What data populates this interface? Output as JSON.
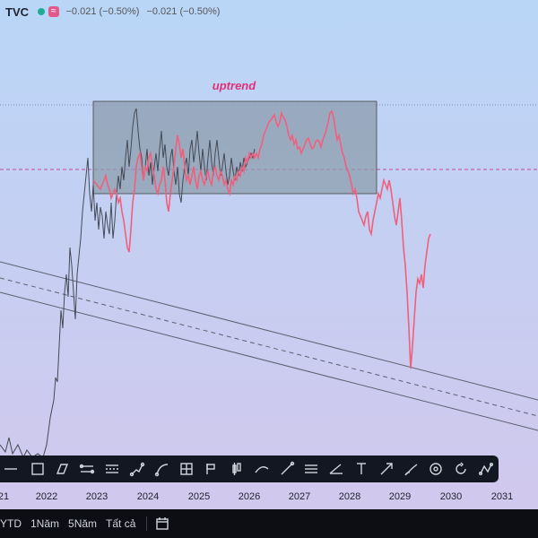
{
  "header": {
    "symbol": "TVC",
    "wave_badge": "≈",
    "change_a": "−0.021 (−0.50%)",
    "change_b": "−0.021 (−0.50%)"
  },
  "chart": {
    "annotation": "uptrend",
    "annotation_color": "#e0307a",
    "series_color_history": "#444a55",
    "series_color_projection": "#f0607e",
    "rectangle_fill": "#8c9cad"
  },
  "x_axis": {
    "labels": [
      "21",
      "2022",
      "2023",
      "2024",
      "2025",
      "2026",
      "2027",
      "2028",
      "2029",
      "2030",
      "2031"
    ]
  },
  "toolbar": {
    "tools": [
      "trend-line-tool",
      "rectangle-tool",
      "parallelogram-tool",
      "parallel-channel-tool",
      "regression-channel-tool",
      "path-tool",
      "curve-tool",
      "grid-tool",
      "flag-marker-tool",
      "candle-tool",
      "ray-tool",
      "line-tool",
      "horizontal-lines-tool",
      "fan-tool",
      "text-tool",
      "arrow-tool",
      "brush-tool",
      "circle-target-tool",
      "rotate-tool",
      "pattern-tool"
    ]
  },
  "bottom_bar": {
    "ranges": [
      "YTD",
      "1Năm",
      "5Năm",
      "Tất cả"
    ]
  }
}
